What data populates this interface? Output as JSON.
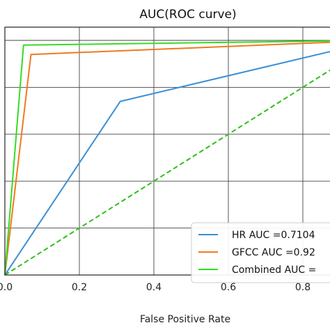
{
  "chart_data": {
    "type": "line",
    "title": "AUC(ROC curve)",
    "xlabel": "False Positive Rate",
    "ylabel": "",
    "xlim": [
      0.0,
      0.9
    ],
    "ylim": [
      0.0,
      1.0
    ],
    "x_ticks": [
      "0.0",
      "0.2",
      "0.4",
      "0.6",
      "0.8"
    ],
    "x_tick_values": [
      0.0,
      0.2,
      0.4,
      0.6,
      0.8
    ],
    "y_grid_values": [
      0.0,
      0.2,
      0.4,
      0.6,
      0.8,
      1.0
    ],
    "grid": true,
    "legend_position": "lower-right",
    "series": [
      {
        "name": "HR AUC =0.7104",
        "color": "#3b8fd4",
        "style": "solid",
        "points": [
          [
            0.0,
            0.0
          ],
          [
            0.31,
            0.74
          ],
          [
            1.0,
            1.0
          ]
        ]
      },
      {
        "name": "GFCC AUC =0.92",
        "color": "#f07a1f",
        "style": "solid",
        "points": [
          [
            0.0,
            0.0
          ],
          [
            0.07,
            0.94
          ],
          [
            1.0,
            1.0
          ]
        ]
      },
      {
        "name": "Combined AUC =",
        "color": "#33dd22",
        "style": "solid",
        "points": [
          [
            0.0,
            0.0
          ],
          [
            0.05,
            0.98
          ],
          [
            1.0,
            1.0
          ]
        ]
      },
      {
        "name": "",
        "color": "#2fbf1a",
        "style": "dashed",
        "points": [
          [
            0.0,
            0.0
          ],
          [
            1.0,
            1.0
          ]
        ]
      }
    ]
  }
}
